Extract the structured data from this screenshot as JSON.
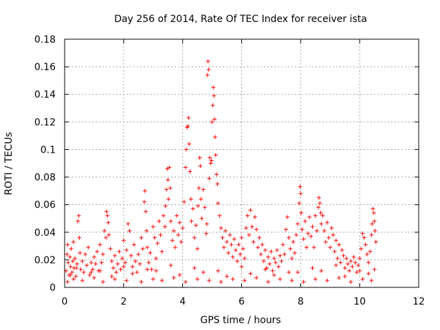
{
  "chart_data": {
    "type": "scatter",
    "title": "Day 256 of 2014, Rate Of TEC Index for receiver ista",
    "xlabel": "GPS time / hours",
    "ylabel": "ROTI / TECUs",
    "xlim": [
      0,
      12
    ],
    "ylim": [
      0,
      0.18
    ],
    "xticks": [
      0,
      2,
      4,
      6,
      8,
      10,
      12
    ],
    "yticks": [
      0,
      0.02,
      0.04,
      0.06,
      0.08,
      0.1,
      0.12,
      0.14,
      0.16,
      0.18
    ],
    "grid": true,
    "marker": "+",
    "series": [
      {
        "name": "ROTI",
        "color": "#ff0000",
        "x": [
          0.05,
          0.08,
          0.1,
          0.12,
          0.15,
          0.18,
          0.2,
          0.22,
          0.25,
          0.28,
          0.3,
          0.32,
          0.35,
          0.38,
          0.42,
          0.45,
          0.48,
          0.5,
          0.52,
          0.55,
          0.6,
          0.65,
          0.7,
          0.75,
          0.8,
          0.85,
          0.9,
          0.95,
          1.0,
          1.05,
          1.1,
          1.15,
          1.2,
          1.25,
          1.3,
          1.35,
          1.4,
          1.42,
          1.45,
          1.48,
          1.5,
          1.55,
          1.6,
          1.65,
          1.7,
          1.75,
          1.8,
          1.85,
          1.9,
          1.95,
          2.0,
          2.05,
          2.1,
          2.15,
          2.2,
          2.25,
          2.3,
          2.35,
          2.4,
          2.45,
          2.5,
          2.55,
          2.6,
          2.65,
          2.7,
          2.72,
          2.75,
          2.78,
          2.8,
          2.85,
          2.9,
          2.95,
          3.0,
          3.05,
          3.1,
          3.15,
          3.2,
          3.25,
          3.3,
          3.35,
          3.4,
          3.42,
          3.45,
          3.48,
          3.5,
          3.52,
          3.55,
          3.58,
          3.6,
          3.65,
          3.7,
          3.75,
          3.8,
          3.85,
          3.9,
          3.95,
          4.0,
          4.05,
          4.1,
          4.12,
          4.15,
          4.18,
          4.2,
          4.22,
          4.25,
          4.28,
          4.3,
          4.35,
          4.4,
          4.45,
          4.5,
          4.52,
          4.55,
          4.58,
          4.6,
          4.62,
          4.65,
          4.7,
          4.75,
          4.8,
          4.82,
          4.84,
          4.86,
          4.88,
          4.9,
          4.92,
          4.95,
          4.98,
          5.0,
          5.02,
          5.04,
          5.06,
          5.08,
          5.1,
          5.12,
          5.15,
          5.18,
          5.2,
          5.25,
          5.3,
          5.35,
          5.4,
          5.45,
          5.5,
          5.55,
          5.6,
          5.65,
          5.7,
          5.75,
          5.8,
          5.85,
          5.9,
          5.95,
          6.0,
          6.05,
          6.1,
          6.15,
          6.2,
          6.25,
          6.3,
          6.35,
          6.4,
          6.45,
          6.5,
          6.55,
          6.6,
          6.65,
          6.7,
          6.75,
          6.8,
          6.85,
          6.9,
          6.95,
          7.0,
          7.05,
          7.1,
          7.15,
          7.2,
          7.25,
          7.3,
          7.35,
          7.4,
          7.45,
          7.5,
          7.55,
          7.6,
          7.65,
          7.7,
          7.75,
          7.8,
          7.85,
          7.9,
          7.95,
          7.98,
          8.0,
          8.02,
          8.05,
          8.1,
          8.15,
          8.2,
          8.25,
          8.3,
          8.35,
          8.4,
          8.45,
          8.5,
          8.55,
          8.6,
          8.62,
          8.65,
          8.68,
          8.7,
          8.75,
          8.8,
          8.85,
          8.9,
          8.95,
          9.0,
          9.05,
          9.1,
          9.15,
          9.2,
          9.25,
          9.3,
          9.35,
          9.4,
          9.45,
          9.5,
          9.55,
          9.6,
          9.65,
          9.7,
          9.75,
          9.8,
          9.85,
          9.9,
          9.95,
          10.0,
          10.05,
          10.1,
          10.15,
          10.2,
          10.25,
          10.3,
          10.35,
          10.4,
          10.42,
          10.45,
          10.48,
          10.5,
          10.52,
          10.55,
          0.1,
          0.3,
          0.6,
          1.0,
          1.3,
          1.7,
          2.1,
          2.6,
          3.0,
          3.3,
          3.7,
          4.1,
          4.5,
          4.9,
          5.3,
          5.7,
          6.1,
          6.5,
          6.9,
          7.3,
          7.7,
          8.1,
          8.5,
          8.9,
          9.3,
          9.7,
          10.1,
          10.4,
          0.2,
          0.9,
          1.6,
          2.3,
          3.1,
          3.9,
          4.7,
          5.5,
          6.3,
          7.1,
          7.9,
          8.7,
          9.5,
          10.3,
          0.4,
          1.2,
          2.0,
          2.8,
          3.6,
          4.4,
          5.2,
          6.0,
          6.8,
          7.6,
          8.4,
          9.2,
          10.0,
          10.5
        ],
        "y": [
          0.012,
          0.024,
          0.031,
          0.018,
          0.009,
          0.022,
          0.015,
          0.028,
          0.011,
          0.019,
          0.033,
          0.014,
          0.021,
          0.008,
          0.017,
          0.048,
          0.052,
          0.036,
          0.025,
          0.013,
          0.019,
          0.011,
          0.024,
          0.016,
          0.029,
          0.009,
          0.018,
          0.013,
          0.022,
          0.017,
          0.026,
          0.012,
          0.031,
          0.018,
          0.024,
          0.041,
          0.036,
          0.055,
          0.052,
          0.047,
          0.038,
          0.028,
          0.019,
          0.014,
          0.023,
          0.011,
          0.017,
          0.026,
          0.013,
          0.021,
          0.034,
          0.018,
          0.027,
          0.046,
          0.041,
          0.023,
          0.015,
          0.031,
          0.019,
          0.011,
          0.024,
          0.017,
          0.036,
          0.028,
          0.062,
          0.07,
          0.055,
          0.041,
          0.029,
          0.018,
          0.025,
          0.013,
          0.044,
          0.036,
          0.021,
          0.032,
          0.048,
          0.038,
          0.026,
          0.052,
          0.044,
          0.059,
          0.071,
          0.086,
          0.078,
          0.064,
          0.087,
          0.072,
          0.048,
          0.034,
          0.041,
          0.029,
          0.052,
          0.038,
          0.047,
          0.033,
          0.043,
          0.062,
          0.087,
          0.1,
          0.116,
          0.117,
          0.123,
          0.104,
          0.084,
          0.064,
          0.048,
          0.057,
          0.036,
          0.045,
          0.028,
          0.059,
          0.072,
          0.094,
          0.088,
          0.064,
          0.05,
          0.071,
          0.058,
          0.039,
          0.046,
          0.154,
          0.164,
          0.158,
          0.079,
          0.094,
          0.09,
          0.092,
          0.12,
          0.132,
          0.145,
          0.139,
          0.122,
          0.109,
          0.096,
          0.082,
          0.075,
          0.061,
          0.052,
          0.043,
          0.036,
          0.029,
          0.041,
          0.033,
          0.025,
          0.038,
          0.031,
          0.022,
          0.035,
          0.027,
          0.019,
          0.031,
          0.024,
          0.036,
          0.028,
          0.021,
          0.043,
          0.052,
          0.038,
          0.056,
          0.044,
          0.033,
          0.051,
          0.042,
          0.029,
          0.036,
          0.024,
          0.031,
          0.019,
          0.027,
          0.014,
          0.022,
          0.017,
          0.026,
          0.012,
          0.021,
          0.018,
          0.027,
          0.015,
          0.023,
          0.019,
          0.031,
          0.024,
          0.042,
          0.051,
          0.036,
          0.028,
          0.021,
          0.033,
          0.025,
          0.038,
          0.046,
          0.061,
          0.073,
          0.068,
          0.054,
          0.042,
          0.035,
          0.048,
          0.029,
          0.039,
          0.051,
          0.037,
          0.044,
          0.029,
          0.052,
          0.041,
          0.058,
          0.065,
          0.061,
          0.054,
          0.046,
          0.052,
          0.041,
          0.033,
          0.047,
          0.036,
          0.029,
          0.043,
          0.038,
          0.026,
          0.034,
          0.021,
          0.031,
          0.018,
          0.027,
          0.023,
          0.014,
          0.021,
          0.017,
          0.012,
          0.019,
          0.015,
          0.022,
          0.018,
          0.011,
          0.016,
          0.021,
          0.028,
          0.039,
          0.036,
          0.031,
          0.024,
          0.018,
          0.026,
          0.038,
          0.046,
          0.057,
          0.054,
          0.048,
          0.041,
          0.033,
          0.004,
          0.006,
          0.005,
          0.007,
          0.004,
          0.006,
          0.005,
          0.004,
          0.006,
          0.005,
          0.007,
          0.004,
          0.006,
          0.005,
          0.004,
          0.006,
          0.005,
          0.007,
          0.004,
          0.006,
          0.005,
          0.004,
          0.006,
          0.005,
          0.007,
          0.004,
          0.006,
          0.005,
          0.009,
          0.011,
          0.008,
          0.01,
          0.012,
          0.009,
          0.011,
          0.008,
          0.01,
          0.009,
          0.011,
          0.012,
          0.008,
          0.01,
          0.014,
          0.012,
          0.015,
          0.013,
          0.016,
          0.014,
          0.012,
          0.015,
          0.013,
          0.011,
          0.014,
          0.016,
          0.012,
          0.013
        ]
      }
    ]
  }
}
